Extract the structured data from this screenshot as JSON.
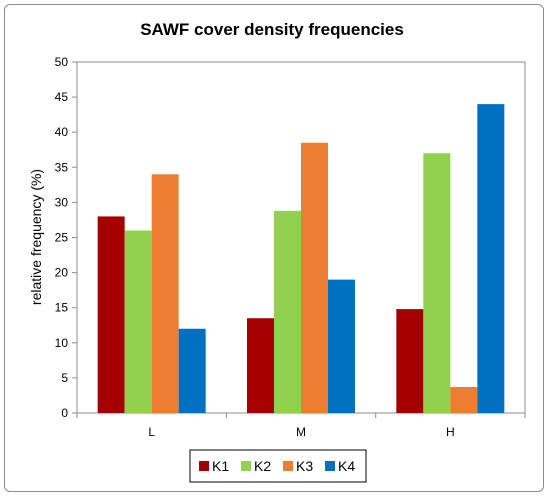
{
  "chart_data": {
    "type": "bar",
    "title": "SAWF cover density frequencies",
    "xlabel": "",
    "ylabel": "relative frequency (%)",
    "ylim": [
      0,
      50
    ],
    "yticks": [
      0,
      5,
      10,
      15,
      20,
      25,
      30,
      35,
      40,
      45,
      50
    ],
    "categories": [
      "L",
      "M",
      "H"
    ],
    "grid": false,
    "legend_position": "bottom",
    "series": [
      {
        "name": "K1",
        "color": "#a50000",
        "values": [
          28,
          13.5,
          14.8
        ]
      },
      {
        "name": "K2",
        "color": "#92d050",
        "values": [
          26,
          28.8,
          37
        ]
      },
      {
        "name": "K3",
        "color": "#ed7d31",
        "values": [
          34,
          38.5,
          3.7
        ]
      },
      {
        "name": "K4",
        "color": "#0070c0",
        "values": [
          12,
          19,
          44
        ]
      }
    ]
  }
}
